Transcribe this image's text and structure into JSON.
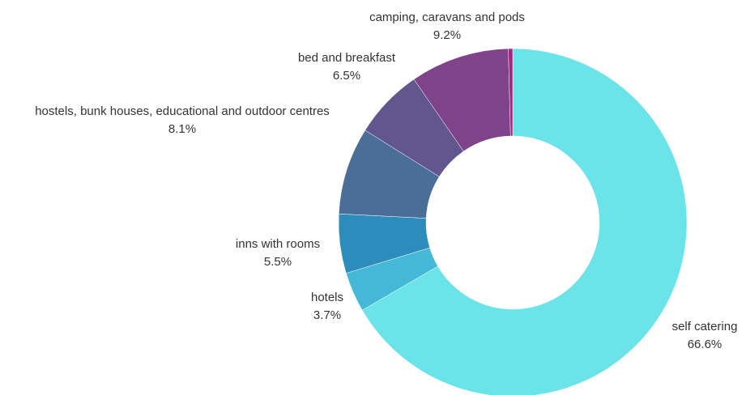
{
  "chart_data": {
    "type": "pie",
    "categories": [
      "self catering",
      "hotels",
      "inns with rooms",
      "hostels, bunk houses, educational and outdoor centres",
      "bed and breakfast",
      "camping, caravans and pods",
      null
    ],
    "values": [
      66.6,
      3.7,
      5.5,
      8.1,
      6.5,
      9.2,
      0.4
    ],
    "value_labels": [
      "66.6%",
      "3.7%",
      "5.5%",
      "8.1%",
      "6.5%",
      "9.2%",
      null
    ],
    "colors": [
      "#6ae4e8",
      "#45b8d8",
      "#2c8cbc",
      "#4a6e98",
      "#62568e",
      "#7e4388",
      "#a0287a"
    ],
    "donut": true
  }
}
